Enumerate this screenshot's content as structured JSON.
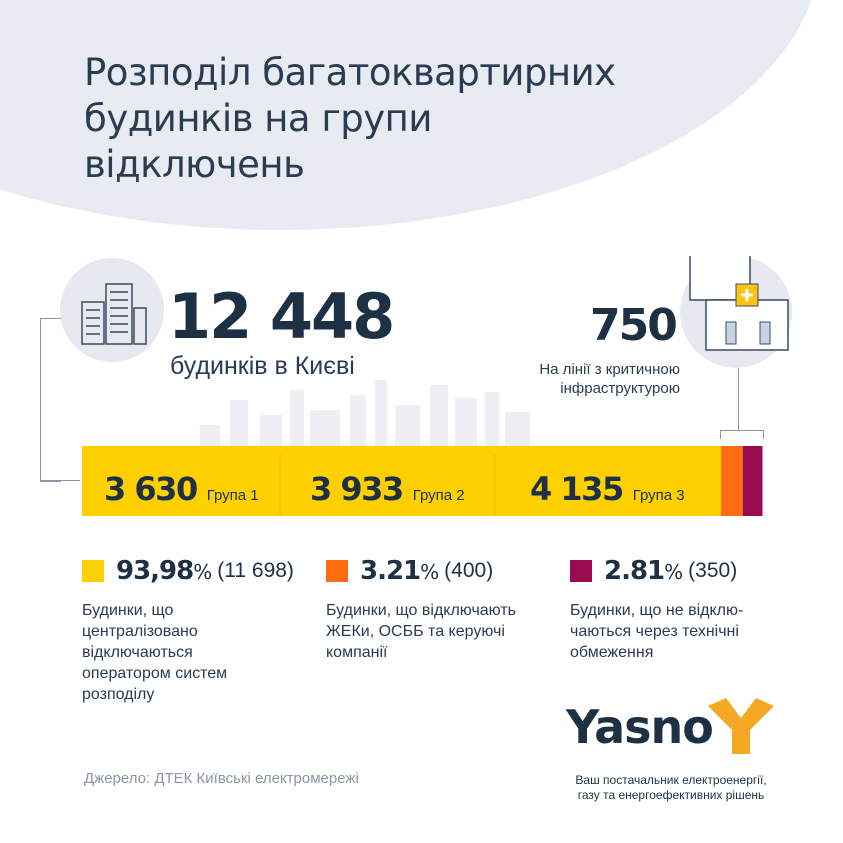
{
  "title": "Розподіл багатоквартирних будинків на групи відключень",
  "total": {
    "value": "12 448",
    "label": "будинків в Києві"
  },
  "critical": {
    "value": "750",
    "label_line1": "На лінії з критичною",
    "label_line2": "інфраструктурою"
  },
  "colors": {
    "yellow": "#ffd000",
    "orange": "#ff6b13",
    "maroon": "#9b0b4f",
    "navy": "#1e3044"
  },
  "chart_data": {
    "type": "bar",
    "orientation": "horizontal-stacked",
    "total": 12448,
    "segments": [
      {
        "value": 3630,
        "label": "3 630",
        "name": "Група 1",
        "color": "#ffd000"
      },
      {
        "value": 3933,
        "label": "3 933",
        "name": "Група 2",
        "color": "#ffd000"
      },
      {
        "value": 4135,
        "label": "4 135",
        "name": "Група 3",
        "color": "#ffd000"
      },
      {
        "value": 400,
        "color": "#ff6b13"
      },
      {
        "value": 350,
        "color": "#9b0b4f"
      }
    ]
  },
  "legend": [
    {
      "pct": "93,98",
      "unit": "%",
      "count": "(11 698)",
      "color": "#ffd000",
      "desc": "Будинки, що централізовано відключаються оператором систем розподілу"
    },
    {
      "pct": "3.21",
      "unit": "%",
      "count": "(400)",
      "color": "#ff6b13",
      "desc": "Будинки, що відключають ЖЕКи, ОСББ та керуючі компанії"
    },
    {
      "pct": "2.81",
      "unit": "%",
      "count": "(350)",
      "color": "#9b0b4f",
      "desc": "Будинки, що не відклю-чаються через технічні обмеження"
    }
  ],
  "source": "Джерело: ДТЕК Київські електромережі",
  "brand": {
    "name": "Yasno",
    "tagline": "Ваш постачальник електроенергії, газу та енергоефективних рішень"
  }
}
